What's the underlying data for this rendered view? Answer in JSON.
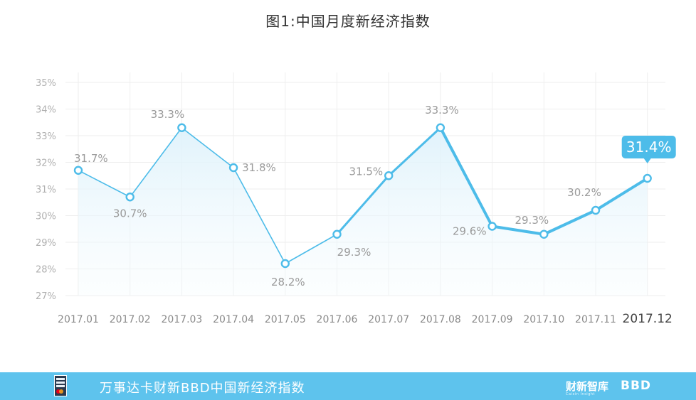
{
  "chart_data": {
    "type": "line",
    "title": "图1:中国月度新经济指数",
    "categories": [
      "2017.01",
      "2017.02",
      "2017.03",
      "2017.04",
      "2017.05",
      "2017.06",
      "2017.07",
      "2017.08",
      "2017.09",
      "2017.10",
      "2017.11",
      "2017.12"
    ],
    "series": [
      {
        "values": [
          31.7,
          30.7,
          33.3,
          31.8,
          28.2,
          29.3,
          31.5,
          33.3,
          29.6,
          29.3,
          30.2,
          31.4
        ]
      }
    ],
    "data_labels": [
      "31.7%",
      "30.7%",
      "33.3%",
      "31.8%",
      "28.2%",
      "29.3%",
      "31.5%",
      "33.3%",
      "29.6%",
      "29.3%",
      "30.2%",
      "31.4%"
    ],
    "yticks": [
      "27%",
      "28%",
      "29%",
      "30%",
      "31%",
      "32%",
      "33%",
      "34%",
      "35%"
    ],
    "ylim": [
      27,
      35
    ],
    "grid": true,
    "highlight_index": 11,
    "colors": {
      "line": "#4dbce9",
      "area": "#e6f5fc",
      "grid": "#eeeeee"
    }
  },
  "footer": {
    "text": "万事达卡财新BBD中国新经济指数",
    "brand": "财新智库",
    "brand_sub": "Caixin Insight",
    "bbd": "BBD",
    "color": "#5ec3ed"
  }
}
